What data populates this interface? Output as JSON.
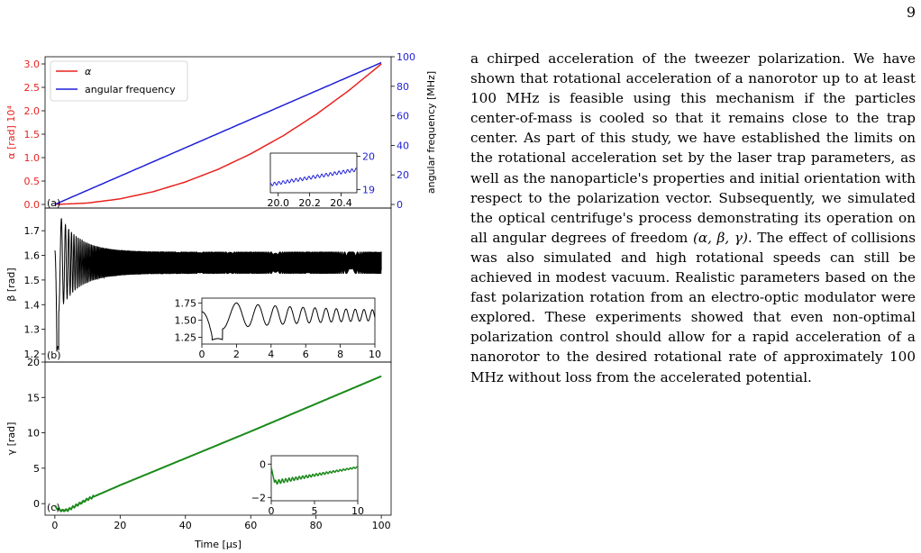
{
  "page_number": "9",
  "body_text": [
    "a chirped acceleration of the tweezer polarization. We have shown that rotational acceleration of a nanorotor up to at least 100 MHz is feasible using this mechanism if the particles center-of-mass is cooled so that it remains close to the trap center. As part of this study, we have established the limits on the rotational acceleration set by the laser trap parameters, as well as the nanoparticle's properties and initial orientation with respect to the polarization vector. Subsequently, we simulated the optical centrifuge's process demonstrating its operation on all angular degrees of freedom ",
    "(α, β, γ)",
    ". The effect of collisions was also simulated and high rotational speeds can still be achieved in modest vacuum. Realistic parameters based on the fast polarization rotation from an electro-optic modulator were explored. These experiments showed that even non-optimal polarization control should allow for a rapid acceleration of a nanorotor to the desired rotational rate of approximately 100 MHz without loss from the accelerated potential."
  ],
  "colors": {
    "alpha": "#e8231f",
    "freq": "#1f1fd8",
    "beta": "#000000",
    "gamma": "#1a8a1a"
  },
  "chart_data": [
    {
      "type": "line",
      "panel_label": "(a)",
      "xlim": [
        -3,
        103
      ],
      "ylim": [
        0,
        3.0
      ],
      "ylabel": "α [rad] 10⁴",
      "yticks": [
        "0.0",
        "0.5",
        "1.0",
        "1.5",
        "2.0",
        "2.5",
        "3.0"
      ],
      "ylabel_right": "angular frequency [MHz]",
      "ylim_right": [
        0,
        100
      ],
      "yticks_right": [
        "0",
        "20",
        "40",
        "60",
        "80",
        "100"
      ],
      "legend": [
        "α",
        "angular frequency"
      ],
      "legend_position": "top-left",
      "series": [
        {
          "name": "α",
          "axis": "left",
          "x": [
            0,
            10,
            20,
            30,
            40,
            50,
            60,
            70,
            80,
            90,
            100
          ],
          "values": [
            0,
            0.03,
            0.12,
            0.27,
            0.48,
            0.75,
            1.08,
            1.47,
            1.92,
            2.43,
            3.0
          ]
        },
        {
          "name": "angular frequency",
          "axis": "right",
          "x": [
            0,
            100
          ],
          "values": [
            0,
            96
          ]
        }
      ],
      "inset": {
        "xlim": [
          19.95,
          20.5
        ],
        "xticks": [
          "20.0",
          "20.2",
          "20.4"
        ],
        "ylim": [
          18.9,
          20.1
        ],
        "yticks": [
          "19",
          "20"
        ],
        "line_start": 19.15,
        "line_end": 19.6
      }
    },
    {
      "type": "line",
      "panel_label": "(b)",
      "xlim": [
        -3,
        103
      ],
      "ylim": [
        1.2,
        1.77
      ],
      "ylabel": "β [rad]",
      "yticks": [
        "1.2",
        "1.3",
        "1.4",
        "1.5",
        "1.6",
        "1.7"
      ],
      "series": [
        {
          "name": "β",
          "start": 1.62,
          "min": 1.21,
          "first_peak": 1.74,
          "center": 1.57,
          "final_half_width": 0.045
        }
      ],
      "inset": {
        "xlim": [
          0,
          10
        ],
        "xticks": [
          "0",
          "2",
          "4",
          "6",
          "8",
          "10"
        ],
        "ylim": [
          1.15,
          1.82
        ],
        "yticks": [
          "1.25",
          "1.50",
          "1.75"
        ]
      }
    },
    {
      "type": "line",
      "panel_label": "(c)",
      "xlim": [
        -3,
        103
      ],
      "ylim": [
        -1,
        20
      ],
      "xlabel": "Time [μs]",
      "xticks": [
        "0",
        "20",
        "40",
        "60",
        "80",
        "100"
      ],
      "ylabel": "γ [rad]",
      "yticks": [
        "0",
        "5",
        "10",
        "15",
        "20"
      ],
      "series": [
        {
          "name": "γ",
          "x": [
            0,
            2,
            4,
            10,
            20,
            40,
            60,
            80,
            100
          ],
          "values": [
            -0.5,
            -1.0,
            -0.9,
            0.6,
            2.6,
            6.4,
            10.2,
            14.1,
            18.0
          ]
        }
      ],
      "inset": {
        "xlim": [
          0,
          10
        ],
        "xticks": [
          "0",
          "5",
          "10"
        ],
        "ylim": [
          -2.2,
          0.5
        ],
        "yticks": [
          "−2",
          "0"
        ]
      }
    }
  ]
}
